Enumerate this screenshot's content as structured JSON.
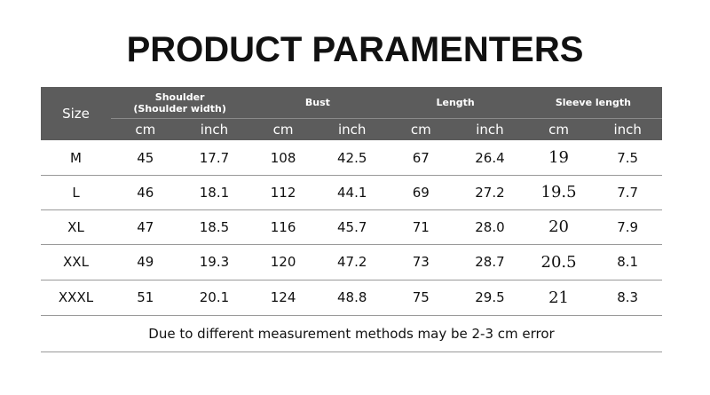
{
  "title": "PRODUCT PARAMENTERS",
  "table": {
    "size_header": "Size",
    "groups": [
      "Shoulder (Shoulder width)",
      "Bust",
      "Length",
      "Sleeve length"
    ],
    "units": [
      "cm",
      "inch",
      "cm",
      "inch",
      "cm",
      "inch",
      "cm",
      "inch"
    ],
    "rows": [
      [
        "M",
        "45",
        "17.7",
        "108",
        "42.5",
        "67",
        "26.4",
        "19",
        "7.5"
      ],
      [
        "L",
        "46",
        "18.1",
        "112",
        "44.1",
        "69",
        "27.2",
        "19.5",
        "7.7"
      ],
      [
        "XL",
        "47",
        "18.5",
        "116",
        "45.7",
        "71",
        "28.0",
        "20",
        "7.9"
      ],
      [
        "XXL",
        "49",
        "19.3",
        "120",
        "47.2",
        "73",
        "28.7",
        "20.5",
        "8.1"
      ],
      [
        "XXXL",
        "51",
        "20.1",
        "124",
        "48.8",
        "75",
        "29.5",
        "21",
        "8.3"
      ]
    ]
  },
  "note": "Due to different measurement methods may be 2-3 cm error"
}
